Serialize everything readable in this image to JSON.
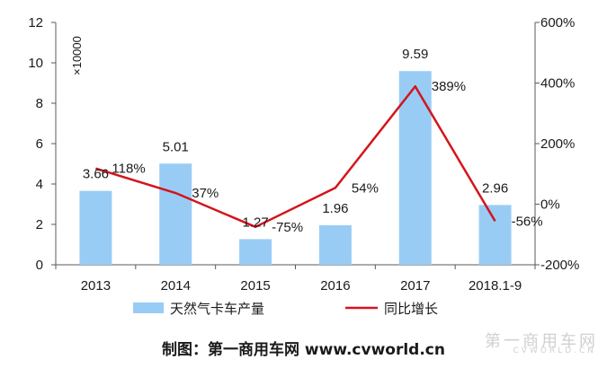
{
  "chart_data": {
    "type": "bar+line",
    "categories": [
      "2013",
      "2014",
      "2015",
      "2016",
      "2017",
      "2018.1-9"
    ],
    "series": [
      {
        "name": "天然气卡车产量",
        "type": "bar",
        "axis": "left",
        "color": "#99ccf5",
        "values": [
          3.66,
          5.01,
          1.27,
          1.96,
          9.59,
          2.96
        ],
        "labels": [
          "3.66",
          "5.01",
          "1.27",
          "1.96",
          "9.59",
          "2.96"
        ]
      },
      {
        "name": "同比增长",
        "type": "line",
        "axis": "right",
        "color": "#d4141b",
        "values": [
          118,
          37,
          -75,
          54,
          389,
          -56
        ],
        "labels": [
          "118%",
          "37%",
          "-75%",
          "54%",
          "389%",
          "-56%"
        ]
      }
    ],
    "y_left": {
      "ylim": [
        0,
        12
      ],
      "ticks": [
        0,
        2,
        4,
        6,
        8,
        10,
        12
      ],
      "tick_labels": [
        "0",
        "2",
        "4",
        "6",
        "8",
        "10",
        "12"
      ],
      "unit": "×10000"
    },
    "y_right": {
      "ylim": [
        -200,
        600
      ],
      "ticks": [
        -200,
        0,
        200,
        400,
        600
      ],
      "tick_labels": [
        "-200%",
        "0%",
        "200%",
        "400%",
        "600%"
      ]
    },
    "legend_position": "bottom",
    "grid": false
  },
  "caption": "制图：第一商用车网 www.cvworld.cn",
  "watermark": "第一商用车网",
  "watermark_sub": "CVWORLD.CN"
}
